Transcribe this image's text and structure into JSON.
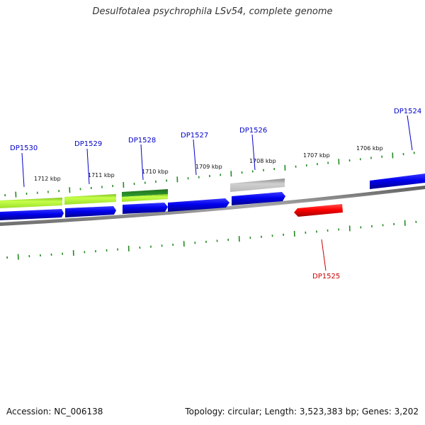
{
  "title": "Desulfotalea psychrophila LSv54, complete genome",
  "footer": {
    "accession": "Accession: NC_006138",
    "summary": "Topology: circular; Length: 3,523,383 bp; Genes: 3,202"
  },
  "colors": {
    "forward_gene": "#0000ee",
    "reverse_gene": "#ff0000",
    "light_green": "#adff2f",
    "dark_green": "#228b22",
    "grey_feature": "#b4b4b4",
    "tick": "#228b22",
    "forward_label": "#0000cc",
    "reverse_label": "#cc0000",
    "backbone": "#7a7a7a"
  },
  "scale_labels": [
    "1712 kbp",
    "1711 kbp",
    "1710 kbp",
    "1709 kbp",
    "1708 kbp",
    "1707 kbp",
    "1706 kbp"
  ],
  "gene_labels": [
    {
      "name": "DP1530",
      "strand": "forward"
    },
    {
      "name": "DP1529",
      "strand": "forward"
    },
    {
      "name": "DP1528",
      "strand": "forward"
    },
    {
      "name": "DP1527",
      "strand": "forward"
    },
    {
      "name": "DP1526",
      "strand": "forward"
    },
    {
      "name": "DP1524",
      "strand": "forward"
    },
    {
      "name": "DP1525",
      "strand": "reverse"
    }
  ]
}
